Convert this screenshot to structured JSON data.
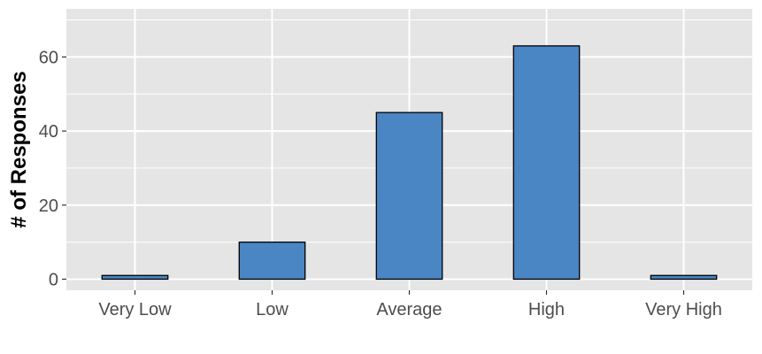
{
  "chart_data": {
    "type": "bar",
    "title": "",
    "xlabel": "",
    "ylabel": "# of Responses",
    "categories": [
      "Very Low",
      "Low",
      "Average",
      "High",
      "Very High"
    ],
    "values": [
      1,
      10,
      45,
      63,
      1
    ],
    "ylim": [
      -3,
      73
    ],
    "yticks": [
      0,
      20,
      40,
      60
    ],
    "ytick_labels": [
      "0",
      "20",
      "40",
      "60"
    ],
    "grid": true,
    "legend": "none",
    "colors": {
      "bar_fill": "#4a85c4",
      "bar_stroke": "#000000",
      "panel_background": "#e5e5e5",
      "grid_line": "#ffffff"
    }
  }
}
